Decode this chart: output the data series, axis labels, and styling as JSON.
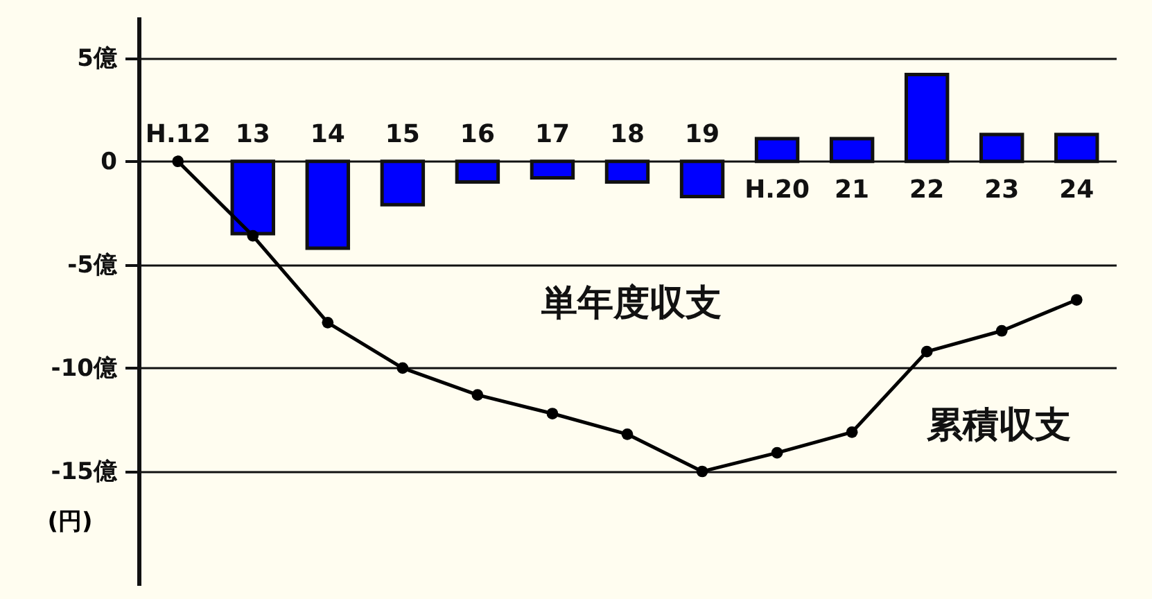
{
  "chart_data": {
    "type": "bar",
    "categories": [
      "H.12",
      "13",
      "14",
      "15",
      "16",
      "17",
      "18",
      "19",
      "H.20",
      "21",
      "22",
      "23",
      "24"
    ],
    "series": [
      {
        "name": "単年度収支",
        "color": "#0000ff",
        "values": [
          null,
          -3.5,
          -4.2,
          -2.1,
          -1.0,
          -0.8,
          -1.0,
          -1.7,
          1.1,
          1.1,
          4.2,
          1.3,
          1.3
        ]
      },
      {
        "name": "累積収支",
        "type": "line",
        "color": "#000000",
        "values": [
          0,
          -3.6,
          -7.8,
          -10.0,
          -11.3,
          -12.2,
          -13.2,
          -15.0,
          -14.1,
          -13.1,
          -9.2,
          -8.2,
          -6.7
        ]
      }
    ],
    "ylabel": "(円)",
    "ylim": [
      -20.5,
      7
    ],
    "yticks": [
      {
        "value": 5,
        "label": "5億"
      },
      0,
      {
        "value": -5,
        "label": "-5億"
      },
      {
        "value": -10,
        "label": "-10億"
      },
      {
        "value": -15,
        "label": "-15億"
      }
    ],
    "grid": "y",
    "marker": "circle",
    "line_style": "solid"
  }
}
